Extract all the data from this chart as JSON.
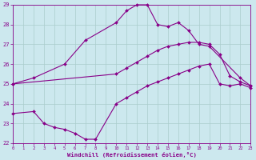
{
  "xlabel": "Windchill (Refroidissement éolien,°C)",
  "background_color": "#cce8ee",
  "line_color": "#880088",
  "grid_color": "#aacccc",
  "ylim": [
    22,
    29
  ],
  "yticks": [
    22,
    23,
    24,
    25,
    26,
    27,
    28,
    29
  ],
  "xlim": [
    0,
    23
  ],
  "xticks": [
    0,
    1,
    2,
    3,
    4,
    5,
    6,
    7,
    8,
    9,
    10,
    11,
    12,
    13,
    14,
    15,
    16,
    17,
    18,
    19,
    20,
    21,
    22,
    23
  ],
  "line1_x": [
    0,
    2,
    5,
    7,
    10,
    11,
    12,
    13,
    14,
    15,
    16,
    17,
    18,
    19,
    22,
    23
  ],
  "line1_y": [
    25.0,
    25.3,
    26.0,
    27.2,
    28.1,
    28.7,
    29.0,
    29.0,
    28.0,
    27.9,
    28.1,
    27.7,
    27.0,
    26.9,
    25.3,
    24.9
  ],
  "line2_x": [
    0,
    10,
    11,
    12,
    13,
    14,
    15,
    16,
    17,
    18,
    19,
    20,
    21,
    22,
    23
  ],
  "line2_y": [
    25.0,
    25.5,
    25.8,
    26.1,
    26.4,
    26.7,
    26.9,
    27.0,
    27.1,
    27.1,
    27.0,
    26.5,
    25.4,
    25.1,
    24.9
  ],
  "line3_x": [
    0,
    2,
    3,
    4,
    5,
    6,
    7,
    8,
    10,
    11,
    12,
    13,
    14,
    15,
    16,
    17,
    18,
    19,
    20,
    21,
    22,
    23
  ],
  "line3_y": [
    23.5,
    23.6,
    23.0,
    22.8,
    22.7,
    22.5,
    22.2,
    22.2,
    24.0,
    24.3,
    24.6,
    24.9,
    25.1,
    25.3,
    25.5,
    25.7,
    25.9,
    26.0,
    25.0,
    24.9,
    25.0,
    24.8
  ]
}
